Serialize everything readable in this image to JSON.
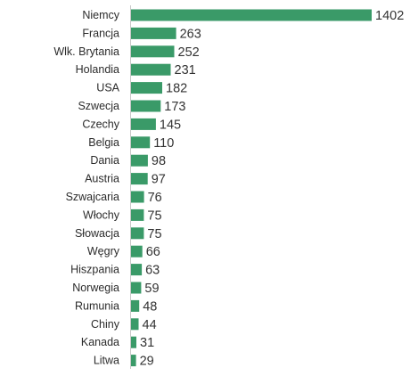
{
  "chart_data": {
    "type": "bar",
    "orientation": "horizontal",
    "categories": [
      "Niemcy",
      "Francja",
      "Wlk. Brytania",
      "Holandia",
      "USA",
      "Szwecja",
      "Czechy",
      "Belgia",
      "Dania",
      "Austria",
      "Szwajcaria",
      "Włochy",
      "Słowacja",
      "Węgry",
      "Hiszpania",
      "Norwegia",
      "Rumunia",
      "Chiny",
      "Kanada",
      "Litwa"
    ],
    "values": [
      1402,
      263,
      252,
      231,
      182,
      173,
      145,
      110,
      98,
      97,
      76,
      75,
      75,
      66,
      63,
      59,
      48,
      44,
      31,
      29
    ],
    "value_labels": [
      "1402",
      "263",
      "252",
      "231",
      "182",
      "173",
      "145",
      "110",
      "98",
      "97",
      "76",
      "75",
      "75",
      "66",
      "63",
      "59",
      "48",
      "44",
      "31",
      "29"
    ],
    "title": "",
    "xlabel": "",
    "ylabel": "",
    "xlim": [
      0,
      1402
    ],
    "grid": false,
    "legend": "none",
    "bar_color": "#3a9a68"
  }
}
